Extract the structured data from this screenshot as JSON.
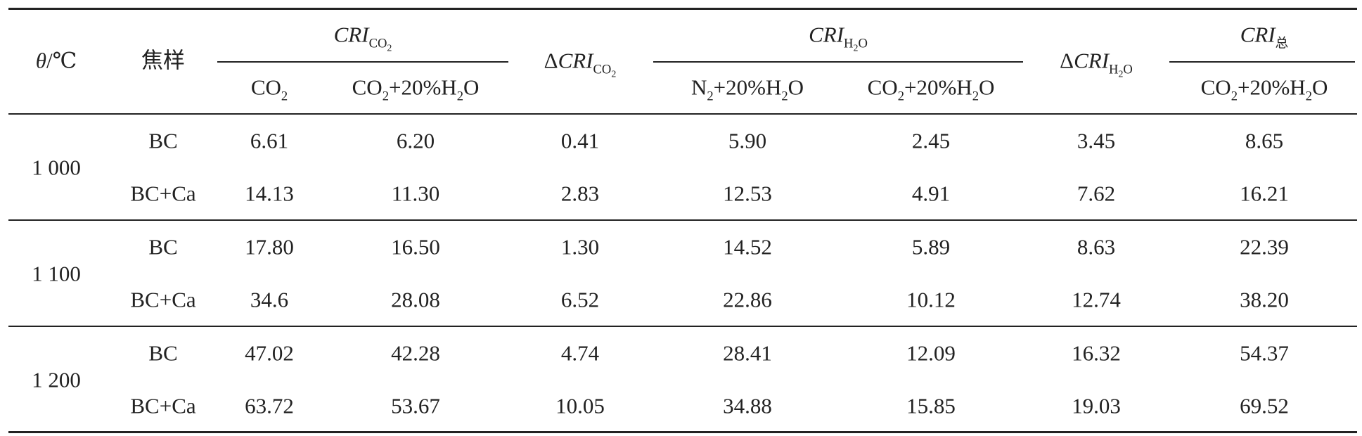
{
  "header": {
    "row1": [
      [
        {
          "text": "θ",
          "italic": true
        },
        {
          "text": "/℃"
        }
      ],
      [
        {
          "text": "焦样"
        }
      ],
      [
        {
          "text": "CRI",
          "italic": true
        },
        {
          "text": "CO",
          "sub": 1
        },
        {
          "text": "2",
          "sub": 2
        }
      ],
      [
        {
          "text": "Δ"
        },
        {
          "text": "CRI",
          "italic": true
        },
        {
          "text": "CO",
          "sub": 1
        },
        {
          "text": "2",
          "sub": 2
        }
      ],
      [
        {
          "text": "CRI",
          "italic": true
        },
        {
          "text": "H",
          "sub": 1
        },
        {
          "text": "2",
          "sub": 2
        },
        {
          "text": "O",
          "sub": 1
        }
      ],
      [
        {
          "text": "Δ"
        },
        {
          "text": "CRI",
          "italic": true
        },
        {
          "text": "H",
          "sub": 1
        },
        {
          "text": "2",
          "sub": 2
        },
        {
          "text": "O",
          "sub": 1
        }
      ],
      [
        {
          "text": "CRI",
          "italic": true
        },
        {
          "text": "总",
          "sub": 1
        }
      ]
    ],
    "row2": [
      [
        {
          "text": "CO"
        },
        {
          "text": "2",
          "sub": 1
        }
      ],
      [
        {
          "text": "CO"
        },
        {
          "text": "2",
          "sub": 1
        },
        {
          "text": "+20%H"
        },
        {
          "text": "2",
          "sub": 1
        },
        {
          "text": "O"
        }
      ],
      [
        {
          "text": "N"
        },
        {
          "text": "2",
          "sub": 1
        },
        {
          "text": "+20%H"
        },
        {
          "text": "2",
          "sub": 1
        },
        {
          "text": "O"
        }
      ],
      [
        {
          "text": "CO"
        },
        {
          "text": "2",
          "sub": 1
        },
        {
          "text": "+20%H"
        },
        {
          "text": "2",
          "sub": 1
        },
        {
          "text": "O"
        }
      ],
      [
        {
          "text": "CO"
        },
        {
          "text": "2",
          "sub": 1
        },
        {
          "text": "+20%H"
        },
        {
          "text": "2",
          "sub": 1
        },
        {
          "text": "O"
        }
      ]
    ]
  },
  "rows": [
    {
      "temperature": "1 000",
      "samples": [
        {
          "sample": "BC",
          "values": [
            "6.61",
            "6.20",
            "0.41",
            "5.90",
            "2.45",
            "3.45",
            "8.65"
          ]
        },
        {
          "sample": "BC+Ca",
          "values": [
            "14.13",
            "11.30",
            "2.83",
            "12.53",
            "4.91",
            "7.62",
            "16.21"
          ]
        }
      ]
    },
    {
      "temperature": "1 100",
      "samples": [
        {
          "sample": "BC",
          "values": [
            "17.80",
            "16.50",
            "1.30",
            "14.52",
            "5.89",
            "8.63",
            "22.39"
          ]
        },
        {
          "sample": "BC+Ca",
          "values": [
            "34.6",
            "28.08",
            "6.52",
            "22.86",
            "10.12",
            "12.74",
            "38.20"
          ]
        }
      ]
    },
    {
      "temperature": "1 200",
      "samples": [
        {
          "sample": "BC",
          "values": [
            "47.02",
            "42.28",
            "4.74",
            "28.41",
            "12.09",
            "16.32",
            "54.37"
          ]
        },
        {
          "sample": "BC+Ca",
          "values": [
            "63.72",
            "53.67",
            "10.05",
            "34.88",
            "15.85",
            "19.03",
            "69.52"
          ]
        }
      ]
    }
  ]
}
